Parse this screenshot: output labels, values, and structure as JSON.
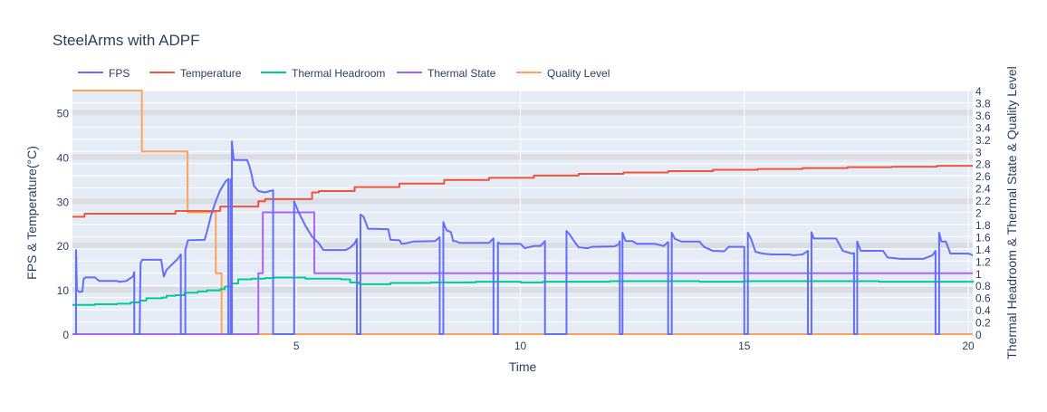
{
  "chart_data": {
    "type": "line",
    "title": "SteelArms with ADPF",
    "xlabel": "Time",
    "ylabel_left": "FPS & Temperature(°C)",
    "ylabel_right": "Thermal Headroom & Thermal State & Quality Level",
    "xlim": [
      0,
      20.1
    ],
    "ylim_left": [
      0,
      55
    ],
    "ylim_right": [
      0,
      4
    ],
    "x_ticks": [
      5,
      10,
      15,
      20
    ],
    "y_ticks_left": [
      0,
      10,
      20,
      30,
      40,
      50
    ],
    "y_ticks_right": [
      0,
      0.2,
      0.4,
      0.6,
      0.8,
      1,
      1.2,
      1.4,
      1.6,
      1.8,
      2,
      2.2,
      2.4,
      2.6,
      2.8,
      3,
      3.2,
      3.4,
      3.6,
      3.8,
      4
    ],
    "grid": true,
    "legend": "top-left, horizontal",
    "series": [
      {
        "name": "FPS",
        "axis": "left",
        "color": "#636efa",
        "shape": "linear",
        "points": [
          [
            0.05,
            0
          ],
          [
            0.08,
            0
          ],
          [
            0.08,
            19
          ],
          [
            0.1,
            10
          ],
          [
            0.15,
            9.5
          ],
          [
            0.22,
            9.6
          ],
          [
            0.25,
            12.5
          ],
          [
            0.3,
            12.8
          ],
          [
            0.5,
            12.8
          ],
          [
            0.6,
            12
          ],
          [
            1.0,
            12
          ],
          [
            1.05,
            11.8
          ],
          [
            1.2,
            12
          ],
          [
            1.35,
            13
          ],
          [
            1.38,
            14
          ],
          [
            1.38,
            0
          ],
          [
            1.5,
            0
          ],
          [
            1.52,
            16
          ],
          [
            1.56,
            16.8
          ],
          [
            1.98,
            16.8
          ],
          [
            2.04,
            13
          ],
          [
            2.1,
            14.5
          ],
          [
            2.2,
            15.5
          ],
          [
            2.35,
            17
          ],
          [
            2.42,
            18
          ],
          [
            2.42,
            0
          ],
          [
            2.52,
            0
          ],
          [
            2.52,
            19
          ],
          [
            2.58,
            21.2
          ],
          [
            2.95,
            21.3
          ],
          [
            3.0,
            23
          ],
          [
            3.05,
            25
          ],
          [
            3.1,
            27
          ],
          [
            3.2,
            30
          ],
          [
            3.3,
            32.5
          ],
          [
            3.42,
            34.5
          ],
          [
            3.48,
            35
          ],
          [
            3.48,
            0
          ],
          [
            3.53,
            0
          ],
          [
            3.53,
            35
          ],
          [
            3.55,
            0
          ],
          [
            3.56,
            0
          ],
          [
            3.56,
            43.5
          ],
          [
            3.6,
            39.3
          ],
          [
            3.9,
            39.3
          ],
          [
            3.95,
            38
          ],
          [
            4.0,
            36
          ],
          [
            4.05,
            33.5
          ],
          [
            4.15,
            32.3
          ],
          [
            4.3,
            32
          ],
          [
            4.48,
            32.5
          ],
          [
            4.48,
            0
          ],
          [
            4.95,
            0
          ],
          [
            4.95,
            30
          ],
          [
            5.05,
            27.5
          ],
          [
            5.2,
            24.5
          ],
          [
            5.35,
            22
          ],
          [
            5.5,
            20.5
          ],
          [
            5.6,
            19
          ],
          [
            6.1,
            19
          ],
          [
            6.2,
            19.5
          ],
          [
            6.3,
            20.5
          ],
          [
            6.35,
            21.5
          ],
          [
            6.35,
            0
          ],
          [
            6.43,
            0
          ],
          [
            6.43,
            27
          ],
          [
            6.5,
            26.5
          ],
          [
            6.6,
            23.8
          ],
          [
            7.05,
            23.7
          ],
          [
            7.1,
            21.3
          ],
          [
            7.3,
            21.2
          ],
          [
            7.35,
            20.4
          ],
          [
            7.45,
            20.5
          ],
          [
            7.6,
            20.9
          ],
          [
            8.1,
            21
          ],
          [
            8.2,
            21.9
          ],
          [
            8.2,
            0
          ],
          [
            8.28,
            0
          ],
          [
            8.28,
            25.3
          ],
          [
            8.35,
            23.5
          ],
          [
            8.45,
            23
          ],
          [
            8.5,
            21
          ],
          [
            8.55,
            21
          ],
          [
            8.65,
            20.6
          ],
          [
            9.3,
            20.6
          ],
          [
            9.4,
            21.6
          ],
          [
            9.4,
            0
          ],
          [
            9.5,
            0
          ],
          [
            9.5,
            20.7
          ],
          [
            9.55,
            20.4
          ],
          [
            10.0,
            20.4
          ],
          [
            10.1,
            19.4
          ],
          [
            10.3,
            19.9
          ],
          [
            10.45,
            19.9
          ],
          [
            10.55,
            21
          ],
          [
            10.55,
            0
          ],
          [
            11.03,
            0
          ],
          [
            11.03,
            23.3
          ],
          [
            11.1,
            22.5
          ],
          [
            11.2,
            21
          ],
          [
            11.3,
            19.6
          ],
          [
            11.5,
            19.4
          ],
          [
            11.6,
            19.7
          ],
          [
            12.1,
            19.8
          ],
          [
            12.2,
            20.3
          ],
          [
            12.22,
            21
          ],
          [
            12.22,
            0
          ],
          [
            12.28,
            0
          ],
          [
            12.28,
            22.9
          ],
          [
            12.35,
            21
          ],
          [
            12.5,
            21
          ],
          [
            12.6,
            20.4
          ],
          [
            13.0,
            20.4
          ],
          [
            13.2,
            19.9
          ],
          [
            13.3,
            20.8
          ],
          [
            13.3,
            0
          ],
          [
            13.38,
            0
          ],
          [
            13.38,
            22.9
          ],
          [
            13.45,
            21.5
          ],
          [
            13.6,
            20.9
          ],
          [
            14.0,
            20.9
          ],
          [
            14.1,
            19.7
          ],
          [
            14.3,
            18.8
          ],
          [
            14.55,
            18.7
          ],
          [
            14.65,
            19.7
          ],
          [
            15.0,
            19.7
          ],
          [
            15.0,
            0
          ],
          [
            15.08,
            0
          ],
          [
            15.08,
            22.9
          ],
          [
            15.15,
            21.5
          ],
          [
            15.25,
            18.6
          ],
          [
            15.4,
            18.2
          ],
          [
            15.6,
            18
          ],
          [
            16.0,
            18
          ],
          [
            16.1,
            17.8
          ],
          [
            16.3,
            18
          ],
          [
            16.42,
            18.8
          ],
          [
            16.42,
            0
          ],
          [
            16.5,
            0
          ],
          [
            16.5,
            23
          ],
          [
            16.55,
            21.6
          ],
          [
            17.05,
            21.6
          ],
          [
            17.2,
            18.8
          ],
          [
            17.4,
            18.2
          ],
          [
            17.45,
            18.3
          ],
          [
            17.45,
            0
          ],
          [
            17.52,
            0
          ],
          [
            17.52,
            20.9
          ],
          [
            17.6,
            18.8
          ],
          [
            18.1,
            18.8
          ],
          [
            18.2,
            17.3
          ],
          [
            18.5,
            17
          ],
          [
            19.0,
            17
          ],
          [
            19.2,
            17.8
          ],
          [
            19.27,
            18.8
          ],
          [
            19.27,
            0
          ],
          [
            19.35,
            0
          ],
          [
            19.35,
            22.9
          ],
          [
            19.4,
            20.9
          ],
          [
            19.5,
            20.9
          ],
          [
            19.6,
            18.2
          ],
          [
            20.0,
            18.2
          ],
          [
            20.1,
            17.8
          ]
        ]
      },
      {
        "name": "Temperature",
        "axis": "left",
        "color": "#ef553b",
        "shape": "hv",
        "points": [
          [
            0,
            26.5
          ],
          [
            0.27,
            27.2
          ],
          [
            2.3,
            27.8
          ],
          [
            3.3,
            28.8
          ],
          [
            4.15,
            30
          ],
          [
            4.3,
            30.5
          ],
          [
            5.35,
            32
          ],
          [
            5.5,
            32.3
          ],
          [
            6.3,
            33.2
          ],
          [
            7.3,
            34
          ],
          [
            8.3,
            34.8
          ],
          [
            9.3,
            35.3
          ],
          [
            10.3,
            35.8
          ],
          [
            11.3,
            36.2
          ],
          [
            12.3,
            36.5
          ],
          [
            13.3,
            36.8
          ],
          [
            14.3,
            37.1
          ],
          [
            15.3,
            37.3
          ],
          [
            16.3,
            37.5
          ],
          [
            17.3,
            37.7
          ],
          [
            18.3,
            37.8
          ],
          [
            19.3,
            38
          ],
          [
            20.1,
            38
          ]
        ]
      },
      {
        "name": "Thermal Headroom",
        "axis": "right",
        "color": "#00cc96",
        "shape": "hv",
        "points": [
          [
            0,
            0.48
          ],
          [
            0.5,
            0.49
          ],
          [
            1.0,
            0.5
          ],
          [
            1.3,
            0.52
          ],
          [
            1.5,
            0.55
          ],
          [
            1.65,
            0.59
          ],
          [
            2.0,
            0.6
          ],
          [
            2.1,
            0.63
          ],
          [
            2.3,
            0.64
          ],
          [
            2.5,
            0.68
          ],
          [
            2.8,
            0.7
          ],
          [
            3.0,
            0.72
          ],
          [
            3.3,
            0.74
          ],
          [
            3.4,
            0.78
          ],
          [
            3.55,
            0.83
          ],
          [
            3.7,
            0.9
          ],
          [
            4.0,
            0.91
          ],
          [
            4.3,
            0.92
          ],
          [
            4.5,
            0.93
          ],
          [
            5.0,
            0.93
          ],
          [
            5.2,
            0.91
          ],
          [
            6.0,
            0.9
          ],
          [
            6.2,
            0.85
          ],
          [
            6.4,
            0.82
          ],
          [
            7.0,
            0.82
          ],
          [
            7.1,
            0.84
          ],
          [
            8.0,
            0.85
          ],
          [
            9.0,
            0.86
          ],
          [
            10.0,
            0.85
          ],
          [
            10.5,
            0.86
          ],
          [
            12.0,
            0.87
          ],
          [
            14.0,
            0.86
          ],
          [
            15.0,
            0.87
          ],
          [
            17.0,
            0.87
          ],
          [
            18.0,
            0.86
          ],
          [
            20.1,
            0.88
          ]
        ]
      },
      {
        "name": "Thermal State",
        "axis": "right",
        "color": "#ab63fa",
        "shape": "hv",
        "points": [
          [
            0,
            0
          ],
          [
            4.15,
            1
          ],
          [
            4.25,
            2
          ],
          [
            5.4,
            1
          ],
          [
            20.1,
            1
          ]
        ]
      },
      {
        "name": "Quality Level",
        "axis": "right",
        "color": "#ffa15a",
        "shape": "hv",
        "points": [
          [
            0,
            4
          ],
          [
            1.55,
            3
          ],
          [
            2.57,
            2
          ],
          [
            3.2,
            1
          ],
          [
            3.33,
            0
          ],
          [
            20.1,
            0
          ]
        ]
      }
    ]
  }
}
